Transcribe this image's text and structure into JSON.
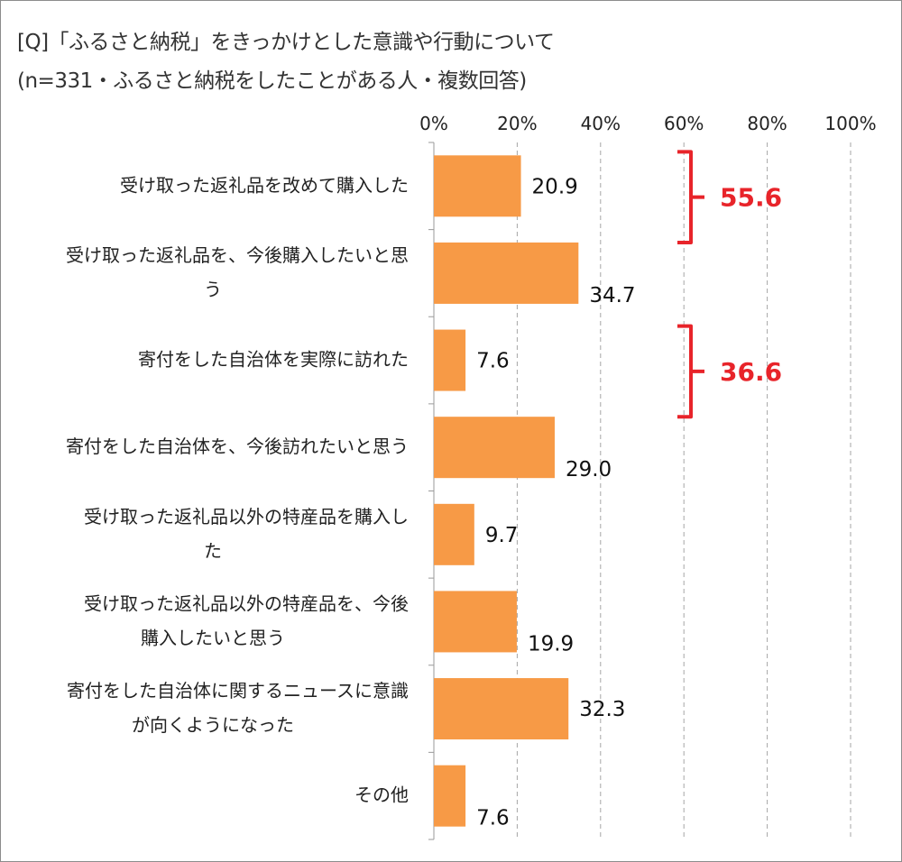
{
  "title_line1": "[Q]「ふるさと納税」をきっかけとした意識や行動について",
  "title_line2": "(n=331・ふるさと納税をしたことがある人・複数回答)",
  "colors": {
    "bar": "#f79a46",
    "bracket": "#e8242a",
    "grid": "#a6a6a6"
  },
  "chart_data": {
    "type": "bar",
    "orientation": "horizontal",
    "categories": [
      [
        "受け取った返礼品を改めて購入した"
      ],
      [
        "受け取った返礼品を、今後購入したいと思",
        "う"
      ],
      [
        "寄付をした自治体を実際に訪れた"
      ],
      [
        "寄付をした自治体を、今後訪れたいと思う"
      ],
      [
        "受け取った返礼品以外の特産品を購入し",
        "た"
      ],
      [
        "受け取った返礼品以外の特産品を、今後",
        "購入したいと思う"
      ],
      [
        "寄付をした自治体に関するニュースに意識",
        "が向くようになった"
      ],
      [
        "その他"
      ]
    ],
    "values": [
      20.9,
      34.7,
      7.6,
      29.0,
      9.7,
      19.9,
      32.3,
      7.6
    ],
    "value_labels": [
      "20.9",
      "34.7",
      "7.6",
      "29.0",
      "9.7",
      "19.9",
      "32.3",
      "7.6"
    ],
    "x_ticks": [
      "0%",
      "20%",
      "40%",
      "60%",
      "80%",
      "100%"
    ],
    "xlim": [
      0,
      100
    ],
    "grid": true,
    "grid_style": "dashed-vertical",
    "brackets": [
      {
        "from": 0,
        "to": 1,
        "label": "55.6"
      },
      {
        "from": 2,
        "to": 3,
        "label": "36.6"
      }
    ]
  }
}
